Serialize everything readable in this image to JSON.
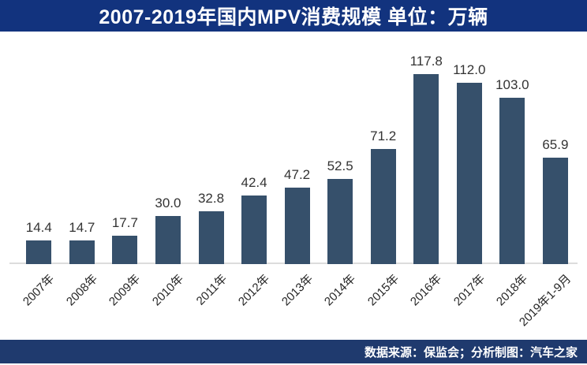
{
  "header": {
    "title": "2007-2019年国内MPV消费规模 单位：万辆"
  },
  "footer": {
    "source_text": "数据来源：保监会；分析制图：汽车之家"
  },
  "colors": {
    "title_bar_bg": "#12337e",
    "title_text": "#ffffff",
    "footer_bg": "#1f3a6e",
    "footer_text": "#ffffff",
    "bar": "#36506b",
    "value_label": "#333333",
    "x_label": "#262626",
    "axis_line": "#dcdcdc"
  },
  "chart_data": {
    "type": "bar",
    "title": "2007-2019年国内MPV消费规模",
    "unit_label": "单位：万辆",
    "categories": [
      "2007年",
      "2008年",
      "2009年",
      "2010年",
      "2011年",
      "2012年",
      "2013年",
      "2014年",
      "2015年",
      "2016年",
      "2017年",
      "2018年",
      "2019年1-9月"
    ],
    "values": [
      14.4,
      14.7,
      17.7,
      30.0,
      32.8,
      42.4,
      47.2,
      52.5,
      71.2,
      117.8,
      112.0,
      103.0,
      65.9
    ],
    "xlabel": "",
    "ylabel": "",
    "ylim": [
      0,
      130
    ],
    "grid": false,
    "legend": "none",
    "value_labels": "above-bars, one decimal place",
    "x_tick_rotation": 45
  }
}
